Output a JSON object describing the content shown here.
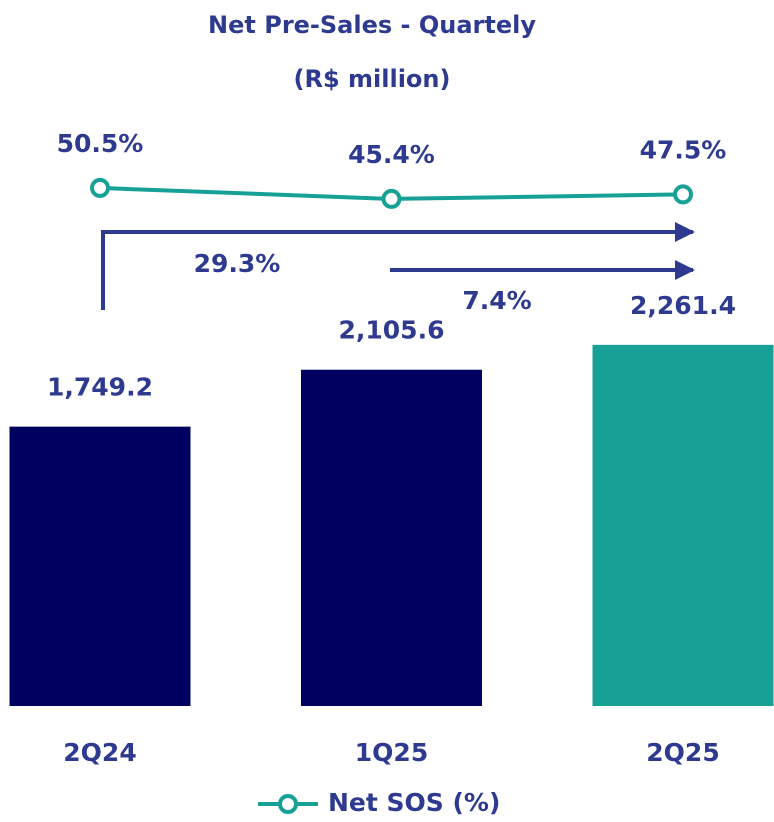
{
  "chart_data": {
    "type": "bar",
    "title": "Net Pre-Sales - Quartely",
    "subtitle": "(R$ million)",
    "categories": [
      "2Q24",
      "1Q25",
      "2Q25"
    ],
    "values": [
      1749.2,
      2105.6,
      2261.4
    ],
    "value_labels": [
      "1,749.2",
      "2,105.6",
      "2,261.4"
    ],
    "colors": [
      "#000060",
      "#000060",
      "#17a096"
    ],
    "line": {
      "type": "line",
      "name": "Net SOS (%)",
      "color": "#17a096",
      "values": [
        50.5,
        45.4,
        47.5
      ],
      "value_labels": [
        "50.5%",
        "45.4%",
        "47.5%"
      ]
    },
    "annotations": [
      "29.3%",
      "7.4%"
    ]
  }
}
